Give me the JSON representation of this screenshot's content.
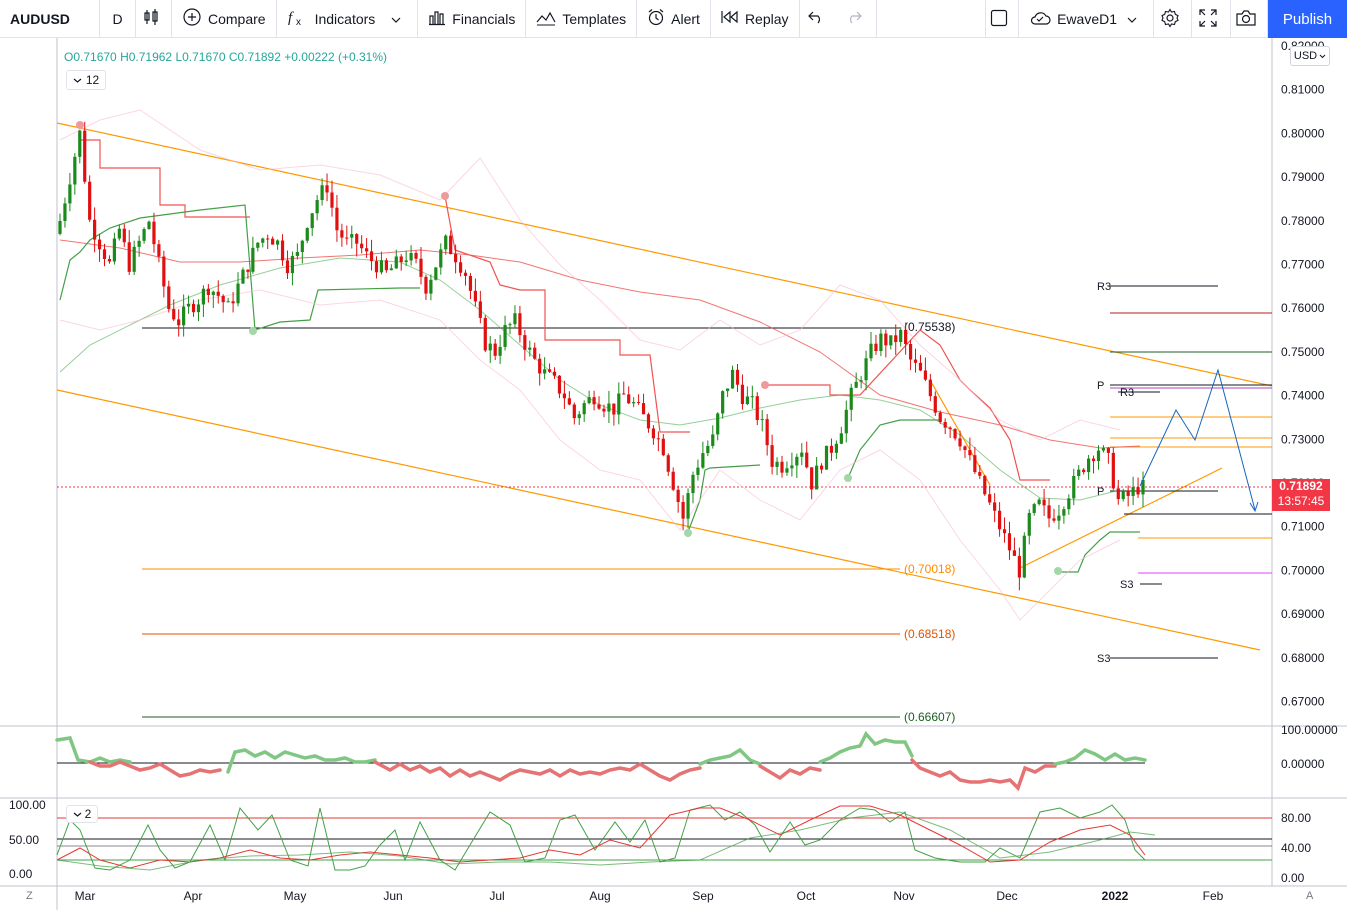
{
  "toolbar": {
    "symbol": "AUDUSD",
    "interval": "D",
    "compare": "Compare",
    "indicators": "Indicators",
    "financials": "Financials",
    "templates": "Templates",
    "alert": "Alert",
    "replay": "Replay",
    "layout_name": "EwaveD1",
    "publish": "Publish"
  },
  "legend": {
    "open": "O0.71670",
    "high": "H0.71962",
    "low": "L0.71670",
    "close": "C0.71892",
    "change": "+0.00222 (+0.31%)",
    "indicator_count": "12",
    "oscillator_count": "2"
  },
  "price_axis": {
    "currency": "USD",
    "ticks": [
      "0.82000",
      "0.81000",
      "0.80000",
      "0.79000",
      "0.78000",
      "0.77000",
      "0.76000",
      "0.75000",
      "0.74000",
      "0.73000",
      "0.72000",
      "0.71000",
      "0.70000",
      "0.69000",
      "0.68000",
      "0.67000"
    ],
    "last_price": "0.71892",
    "countdown": "13:57:45"
  },
  "osc1_axis": {
    "ticks": [
      "100.00000",
      "0.00000"
    ]
  },
  "osc2_axis": {
    "ticks": [
      "80.00",
      "40.00",
      "0.00"
    ],
    "left_ticks": [
      "100.00",
      "50.00",
      "0.00"
    ]
  },
  "time_axis": {
    "labels": [
      "Mar",
      "Apr",
      "May",
      "Jun",
      "Jul",
      "Aug",
      "Sep",
      "Oct",
      "Nov",
      "Dec",
      "2022",
      "Feb"
    ]
  },
  "fib_labels": [
    "(0.75538)",
    "(0.70018)",
    "(0.68518)",
    "(0.66607)"
  ],
  "pivot_labels": [
    "R3",
    "P",
    "R3",
    "P",
    "S3",
    "S3"
  ],
  "corner_left": "Z",
  "corner_right": "A",
  "colors": {
    "up": "#1b8a1b",
    "down": "#e01010",
    "accent": "#2962ff",
    "fib_orange": "#ff8c00"
  },
  "chart_data": {
    "type": "candlestick",
    "symbol": "AUDUSD",
    "timeframe": "D",
    "ylim": [
      0.665,
      0.823
    ],
    "approx_closes": [
      0.78,
      0.79,
      0.8,
      0.78,
      0.775,
      0.77,
      0.778,
      0.77,
      0.775,
      0.78,
      0.77,
      0.76,
      0.757,
      0.76,
      0.762,
      0.765,
      0.763,
      0.76,
      0.765,
      0.77,
      0.775,
      0.777,
      0.775,
      0.77,
      0.772,
      0.78,
      0.785,
      0.788,
      0.778,
      0.775,
      0.775,
      0.772,
      0.77,
      0.768,
      0.77,
      0.772,
      0.77,
      0.765,
      0.77,
      0.775,
      0.772,
      0.768,
      0.76,
      0.752,
      0.75,
      0.755,
      0.757,
      0.752,
      0.748,
      0.745,
      0.743,
      0.74,
      0.735,
      0.738,
      0.74,
      0.738,
      0.737,
      0.74,
      0.738,
      0.735,
      0.732,
      0.728,
      0.72,
      0.712,
      0.722,
      0.727,
      0.73,
      0.74,
      0.745,
      0.74,
      0.738,
      0.733,
      0.725,
      0.724,
      0.726,
      0.728,
      0.72,
      0.725,
      0.728,
      0.733,
      0.74,
      0.745,
      0.75,
      0.753,
      0.752,
      0.754,
      0.748,
      0.745,
      0.74,
      0.735,
      0.733,
      0.73,
      0.725,
      0.72,
      0.715,
      0.71,
      0.705,
      0.7,
      0.712,
      0.715,
      0.712,
      0.714,
      0.718,
      0.722,
      0.726,
      0.728,
      0.725,
      0.716,
      0.717,
      0.719
    ],
    "levels": [
      0.75538,
      0.70018,
      0.68518,
      0.66607
    ]
  }
}
